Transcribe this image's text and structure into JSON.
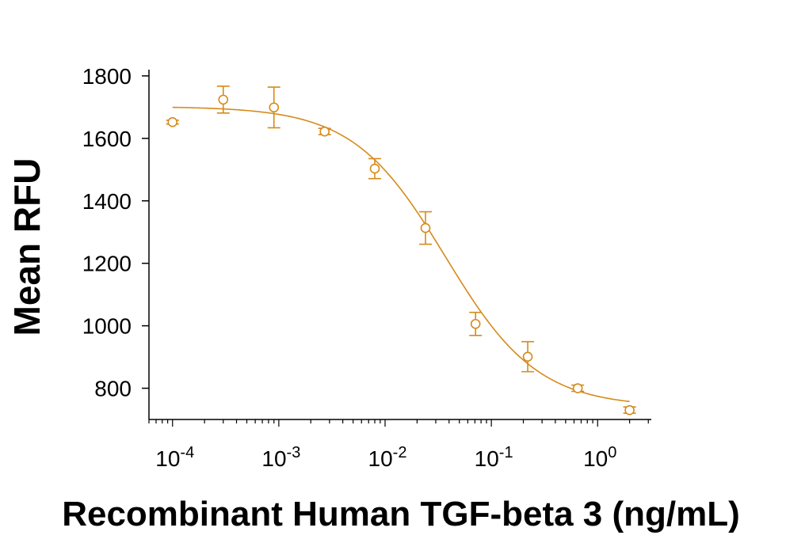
{
  "chart_data": {
    "type": "scatter",
    "xscale": "log",
    "xlim": [
      6e-05,
      3.2
    ],
    "ylim": [
      700,
      1820
    ],
    "xlabel": "Recombinant Human TGF-beta 3 (ng/mL)",
    "ylabel": "Mean RFU",
    "yticks": [
      {
        "value": 800,
        "label": "800"
      },
      {
        "value": 1000,
        "label": "1000"
      },
      {
        "value": 1200,
        "label": "1200"
      },
      {
        "value": 1400,
        "label": "1400"
      },
      {
        "value": 1600,
        "label": "1600"
      },
      {
        "value": 1800,
        "label": "1800"
      }
    ],
    "xticks": [
      {
        "value": 0.0001,
        "base": "10",
        "exp": "-4"
      },
      {
        "value": 0.001,
        "base": "10",
        "exp": "-3"
      },
      {
        "value": 0.01,
        "base": "10",
        "exp": "-2"
      },
      {
        "value": 0.1,
        "base": "10",
        "exp": "-1"
      },
      {
        "value": 1,
        "base": "10",
        "exp": "0"
      }
    ],
    "color": "#D68A1A",
    "points": [
      {
        "x": 0.0001,
        "y": 1652,
        "err": 6
      },
      {
        "x": 0.0003,
        "y": 1724,
        "err": 43
      },
      {
        "x": 0.0009,
        "y": 1699,
        "err": 65
      },
      {
        "x": 0.0027,
        "y": 1622,
        "err": 10
      },
      {
        "x": 0.008,
        "y": 1503,
        "err": 32
      },
      {
        "x": 0.024,
        "y": 1313,
        "err": 52
      },
      {
        "x": 0.071,
        "y": 1006,
        "err": 37
      },
      {
        "x": 0.22,
        "y": 901,
        "err": 48
      },
      {
        "x": 0.65,
        "y": 800,
        "err": 10
      },
      {
        "x": 2.0,
        "y": 730,
        "err": 10
      }
    ],
    "fit": {
      "model": "4PL",
      "top": 1702,
      "bottom": 740,
      "ec50": 0.037,
      "hill": 1.0,
      "x_range": [
        0.0001,
        2.0
      ]
    }
  }
}
